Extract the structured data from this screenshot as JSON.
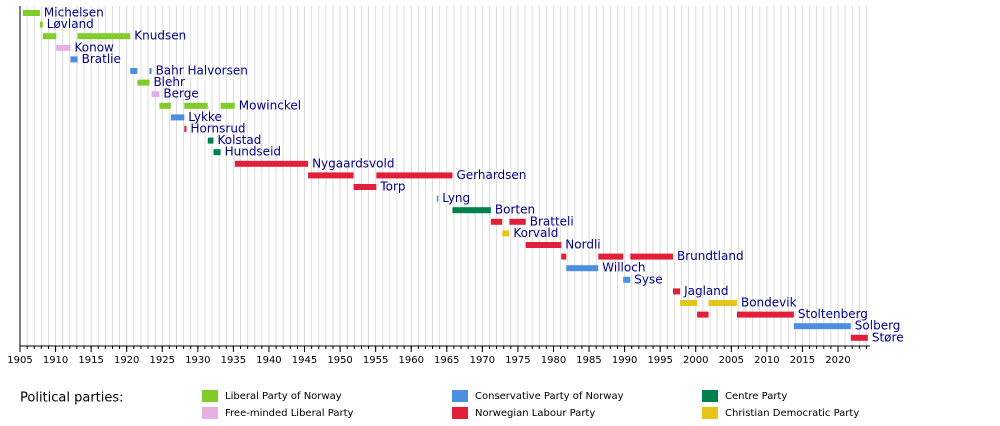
{
  "chart_data": {
    "type": "timeline",
    "xlim": [
      1905,
      2024.5
    ],
    "xticks": [
      1905,
      1910,
      1915,
      1920,
      1925,
      1930,
      1935,
      1940,
      1945,
      1950,
      1955,
      1960,
      1965,
      1970,
      1975,
      1980,
      1985,
      1990,
      1995,
      2000,
      2005,
      2010,
      2015,
      2020
    ],
    "minor_tick_step": 1,
    "grid": true,
    "legend_title": "Political parties:",
    "legend": [
      {
        "name": "Liberal Party of Norway",
        "color": "#80cc28"
      },
      {
        "name": "Free-minded Liberal Party",
        "color": "#e4b0e4"
      },
      {
        "name": "Conservative Party of Norway",
        "color": "#4a8fe2"
      },
      {
        "name": "Norwegian Labour Party",
        "color": "#e21e3a"
      },
      {
        "name": "Centre Party",
        "color": "#00804c"
      },
      {
        "name": "Christian Democratic Party",
        "color": "#e6c51a"
      }
    ],
    "rows": [
      {
        "name": "Michelsen",
        "segments": [
          {
            "start": 1905.4,
            "end": 1907.8,
            "color": "#80cc28"
          }
        ]
      },
      {
        "name": "Løvland",
        "segments": [
          {
            "start": 1907.8,
            "end": 1908.2,
            "color": "#80cc28"
          }
        ]
      },
      {
        "name": "Knudsen",
        "segments": [
          {
            "start": 1908.2,
            "end": 1910.1,
            "color": "#80cc28"
          },
          {
            "start": 1913.1,
            "end": 1920.5,
            "color": "#80cc28"
          }
        ]
      },
      {
        "name": "Konow",
        "segments": [
          {
            "start": 1910.1,
            "end": 1912.1,
            "color": "#e4b0e4"
          }
        ]
      },
      {
        "name": "Bratlie",
        "segments": [
          {
            "start": 1912.1,
            "end": 1913.1,
            "color": "#4a8fe2"
          }
        ]
      },
      {
        "name": "Bahr Halvorsen",
        "segments": [
          {
            "start": 1920.5,
            "end": 1921.5,
            "color": "#4a8fe2"
          },
          {
            "start": 1923.2,
            "end": 1923.5,
            "color": "#4a8fe2"
          }
        ]
      },
      {
        "name": "Blehr",
        "segments": [
          {
            "start": 1921.5,
            "end": 1923.2,
            "color": "#80cc28"
          }
        ]
      },
      {
        "name": "Berge",
        "segments": [
          {
            "start": 1923.5,
            "end": 1924.6,
            "color": "#e4b0e4"
          }
        ]
      },
      {
        "name": "Mowinckel",
        "segments": [
          {
            "start": 1924.6,
            "end": 1926.2,
            "color": "#80cc28"
          },
          {
            "start": 1928.1,
            "end": 1931.4,
            "color": "#80cc28"
          },
          {
            "start": 1933.2,
            "end": 1935.2,
            "color": "#80cc28"
          }
        ]
      },
      {
        "name": "Lykke",
        "segments": [
          {
            "start": 1926.2,
            "end": 1928.1,
            "color": "#4a8fe2"
          }
        ]
      },
      {
        "name": "Hornsrud",
        "segments": [
          {
            "start": 1928.1,
            "end": 1928.4,
            "color": "#e21e3a"
          }
        ]
      },
      {
        "name": "Kolstad",
        "segments": [
          {
            "start": 1931.4,
            "end": 1932.2,
            "color": "#00804c"
          }
        ]
      },
      {
        "name": "Hundseid",
        "segments": [
          {
            "start": 1932.2,
            "end": 1933.2,
            "color": "#00804c"
          }
        ]
      },
      {
        "name": "Nygaardsvold",
        "segments": [
          {
            "start": 1935.2,
            "end": 1945.5,
            "color": "#e21e3a"
          }
        ]
      },
      {
        "name": "Gerhardsen",
        "segments": [
          {
            "start": 1945.5,
            "end": 1951.9,
            "color": "#e21e3a"
          },
          {
            "start": 1955.1,
            "end": 1965.8,
            "color": "#e21e3a"
          }
        ]
      },
      {
        "name": "Torp",
        "segments": [
          {
            "start": 1951.9,
            "end": 1955.1,
            "color": "#e21e3a"
          }
        ]
      },
      {
        "name": "Lyng",
        "segments": [
          {
            "start": 1963.6,
            "end": 1963.8,
            "color": "#4a8fe2"
          }
        ]
      },
      {
        "name": "Borten",
        "segments": [
          {
            "start": 1965.8,
            "end": 1971.2,
            "color": "#00804c"
          }
        ]
      },
      {
        "name": "Bratteli",
        "segments": [
          {
            "start": 1971.2,
            "end": 1972.8,
            "color": "#e21e3a"
          },
          {
            "start": 1973.8,
            "end": 1976.1,
            "color": "#e21e3a"
          }
        ]
      },
      {
        "name": "Korvald",
        "segments": [
          {
            "start": 1972.8,
            "end": 1973.8,
            "color": "#e6c51a"
          }
        ]
      },
      {
        "name": "Nordli",
        "segments": [
          {
            "start": 1976.1,
            "end": 1981.1,
            "color": "#e21e3a"
          }
        ]
      },
      {
        "name": "Brundtland",
        "segments": [
          {
            "start": 1981.1,
            "end": 1981.8,
            "color": "#e21e3a"
          },
          {
            "start": 1986.3,
            "end": 1989.8,
            "color": "#e21e3a"
          },
          {
            "start": 1990.8,
            "end": 1996.8,
            "color": "#e21e3a"
          }
        ]
      },
      {
        "name": "Willoch",
        "segments": [
          {
            "start": 1981.8,
            "end": 1986.3,
            "color": "#4a8fe2"
          }
        ]
      },
      {
        "name": "Syse",
        "segments": [
          {
            "start": 1989.8,
            "end": 1990.8,
            "color": "#4a8fe2"
          }
        ]
      },
      {
        "name": "Jagland",
        "segments": [
          {
            "start": 1996.8,
            "end": 1997.8,
            "color": "#e21e3a"
          }
        ]
      },
      {
        "name": "Bondevik",
        "segments": [
          {
            "start": 1997.8,
            "end": 2000.2,
            "color": "#e6c51a"
          },
          {
            "start": 2001.8,
            "end": 2005.8,
            "color": "#e6c51a"
          }
        ]
      },
      {
        "name": "Stoltenberg",
        "segments": [
          {
            "start": 2000.2,
            "end": 2001.8,
            "color": "#e21e3a"
          },
          {
            "start": 2005.8,
            "end": 2013.8,
            "color": "#e21e3a"
          }
        ]
      },
      {
        "name": "Solberg",
        "segments": [
          {
            "start": 2013.8,
            "end": 2021.8,
            "color": "#4a8fe2"
          }
        ]
      },
      {
        "name": "Støre",
        "segments": [
          {
            "start": 2021.8,
            "end": 2024.2,
            "color": "#e21e3a"
          }
        ]
      }
    ]
  }
}
